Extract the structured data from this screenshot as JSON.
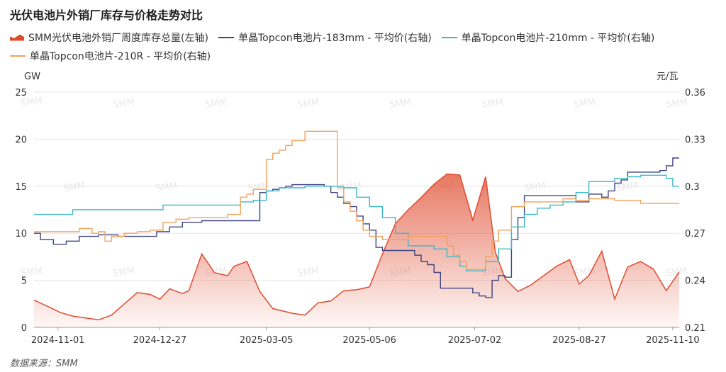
{
  "title": "光伏电池片外销厂库存与价格走势对比",
  "source": "数据来源：SMM",
  "watermark": "SMM",
  "chart_data": {
    "type": "line",
    "title": "光伏电池片外销厂库存与价格走势对比",
    "left_axis": {
      "unit": "GW",
      "min": 0,
      "max": 25,
      "ticks": [
        "0",
        "5",
        "10",
        "15",
        "20",
        "25"
      ]
    },
    "right_axis": {
      "unit": "元/瓦",
      "min": 0.21,
      "max": 0.36,
      "ticks": [
        "0.21",
        "0.24",
        "0.27",
        "0.3",
        "0.33",
        "0.36"
      ]
    },
    "x_ticks": [
      "2024-11-01",
      "2024-12-27",
      "2025-03-05",
      "2025-05-06",
      "2025-07-02",
      "2025-08-27",
      "2025-11-10"
    ],
    "x_range": [
      0,
      100
    ],
    "grid": true,
    "legend_position": "top",
    "series": [
      {
        "name": "SMM光伏电池外销厂周度库存总量(左轴)",
        "axis": "left",
        "style": "area",
        "color": "#e04b2f",
        "x": [
          0,
          2.5,
          4,
          6,
          8,
          10,
          12,
          14,
          16,
          18,
          19.5,
          21,
          23,
          24,
          26,
          28,
          30,
          31,
          33,
          35,
          37,
          40,
          42,
          44,
          46,
          48,
          50,
          52,
          54,
          56,
          58,
          60,
          62,
          64,
          66,
          68,
          70,
          71.5,
          73,
          75,
          77,
          79,
          81,
          83,
          84.5,
          86,
          88,
          90,
          92,
          94,
          96,
          98,
          100
        ],
        "values": [
          2.9,
          2.1,
          1.6,
          1.2,
          1.0,
          0.8,
          1.3,
          2.5,
          3.7,
          3.5,
          3.0,
          4.1,
          3.6,
          3.9,
          7.8,
          5.8,
          5.5,
          6.5,
          7.0,
          3.8,
          2.0,
          1.5,
          1.3,
          2.6,
          2.8,
          3.9,
          4.0,
          4.3,
          7.8,
          11.0,
          12.5,
          13.8,
          15.2,
          16.3,
          16.2,
          11.4,
          16.0,
          8.0,
          5.2,
          3.8,
          4.5,
          5.5,
          6.5,
          7.2,
          4.6,
          5.5,
          8.1,
          3.0,
          6.4,
          7.0,
          6.2,
          3.9,
          5.9
        ]
      },
      {
        "name": "单晶Topcon电池片-183mm - 平均价(右轴)",
        "axis": "right",
        "style": "step",
        "color": "#3e4483",
        "x": [
          0,
          1,
          3,
          5,
          7,
          9,
          10,
          11,
          13,
          14,
          16,
          18,
          19,
          21,
          23,
          25,
          26,
          27,
          28,
          30,
          31,
          32,
          34,
          35,
          36,
          37,
          38,
          39,
          40,
          42,
          44,
          45,
          46,
          47,
          48,
          49,
          50,
          51,
          52,
          53,
          54,
          55,
          56,
          57,
          58,
          59,
          60,
          61,
          62,
          63,
          64,
          65,
          66,
          67,
          68,
          69,
          70,
          71,
          72,
          73,
          74,
          75,
          76,
          78,
          80,
          82,
          84,
          86,
          88,
          89,
          90,
          91,
          92,
          94,
          96,
          97,
          98,
          99,
          100
        ],
        "values": [
          0.27,
          0.266,
          0.263,
          0.265,
          0.268,
          0.268,
          0.269,
          0.269,
          0.268,
          0.268,
          0.268,
          0.268,
          0.271,
          0.274,
          0.277,
          0.277,
          0.278,
          0.278,
          0.278,
          0.278,
          0.278,
          0.278,
          0.278,
          0.296,
          0.297,
          0.298,
          0.299,
          0.3,
          0.301,
          0.301,
          0.301,
          0.3,
          0.296,
          0.293,
          0.289,
          0.287,
          0.281,
          0.276,
          0.272,
          0.261,
          0.259,
          0.259,
          0.259,
          0.259,
          0.259,
          0.256,
          0.252,
          0.25,
          0.245,
          0.235,
          0.235,
          0.235,
          0.235,
          0.235,
          0.232,
          0.23,
          0.229,
          0.24,
          0.243,
          0.242,
          0.266,
          0.28,
          0.294,
          0.294,
          0.294,
          0.294,
          0.29,
          0.295,
          0.293,
          0.297,
          0.302,
          0.304,
          0.309,
          0.309,
          0.309,
          0.31,
          0.313,
          0.318,
          0.318
        ]
      },
      {
        "name": "单晶Topcon电池片-210mm - 平均价(右轴)",
        "axis": "right",
        "style": "step",
        "color": "#3ab7c9",
        "x": [
          0,
          2,
          4,
          5,
          6,
          8,
          10,
          12,
          14,
          16,
          18,
          19,
          20,
          22,
          24,
          26,
          28,
          30,
          32,
          33,
          34,
          36,
          38,
          40,
          42,
          44,
          46,
          48,
          50,
          52,
          54,
          56,
          58,
          60,
          62,
          64,
          65,
          66,
          67,
          68,
          69,
          70,
          71,
          72,
          74,
          76,
          78,
          80,
          82,
          84,
          86,
          88,
          90,
          92,
          94,
          96,
          98,
          99,
          100
        ],
        "values": [
          0.282,
          0.282,
          0.282,
          0.282,
          0.285,
          0.285,
          0.285,
          0.285,
          0.285,
          0.285,
          0.285,
          0.285,
          0.288,
          0.288,
          0.288,
          0.288,
          0.288,
          0.288,
          0.29,
          0.29,
          0.291,
          0.297,
          0.299,
          0.299,
          0.3,
          0.3,
          0.3,
          0.299,
          0.293,
          0.287,
          0.28,
          0.27,
          0.262,
          0.262,
          0.26,
          0.255,
          0.255,
          0.249,
          0.246,
          0.246,
          0.246,
          0.252,
          0.252,
          0.26,
          0.274,
          0.282,
          0.286,
          0.288,
          0.29,
          0.296,
          0.303,
          0.303,
          0.305,
          0.306,
          0.307,
          0.307,
          0.305,
          0.3,
          0.3
        ]
      },
      {
        "name": "单晶Topcon电池片-210R - 平均价(右轴)",
        "axis": "right",
        "style": "step",
        "color": "#f2a25c",
        "x": [
          0,
          1,
          2,
          4,
          5,
          7,
          9,
          10,
          11,
          12,
          14,
          16,
          18,
          20,
          22,
          24,
          26,
          28,
          30,
          32,
          33,
          34,
          36,
          37,
          38,
          39,
          40,
          41,
          42,
          43,
          44,
          45,
          46,
          47,
          48,
          49,
          50,
          51,
          52,
          54,
          56,
          58,
          60,
          62,
          64,
          65,
          66,
          67,
          68,
          69,
          70,
          71,
          72,
          74,
          76,
          78,
          80,
          82,
          84,
          86,
          88,
          90,
          92,
          94,
          96,
          98,
          100
        ],
        "values": [
          0.271,
          0.271,
          0.271,
          0.271,
          0.271,
          0.273,
          0.27,
          0.271,
          0.265,
          0.268,
          0.27,
          0.271,
          0.272,
          0.277,
          0.279,
          0.28,
          0.28,
          0.28,
          0.282,
          0.293,
          0.295,
          0.298,
          0.317,
          0.321,
          0.323,
          0.326,
          0.329,
          0.329,
          0.335,
          0.335,
          0.335,
          0.335,
          0.335,
          0.299,
          0.29,
          0.284,
          0.278,
          0.272,
          0.268,
          0.266,
          0.266,
          0.268,
          0.268,
          0.268,
          0.262,
          0.256,
          0.252,
          0.247,
          0.247,
          0.247,
          0.255,
          0.265,
          0.272,
          0.287,
          0.29,
          0.29,
          0.29,
          0.292,
          0.291,
          0.292,
          0.292,
          0.291,
          0.291,
          0.289,
          0.289,
          0.289,
          0.289
        ]
      }
    ]
  }
}
